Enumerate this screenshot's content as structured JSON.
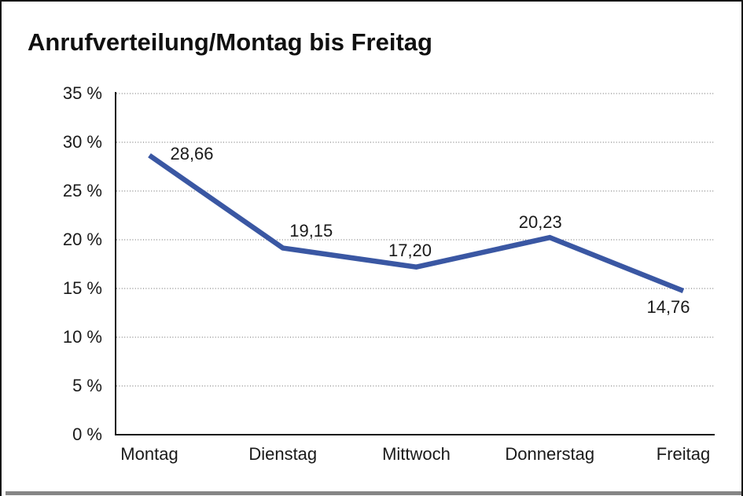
{
  "chart_data": {
    "type": "line",
    "title": "Anrufverteilung/Montag bis Freitag",
    "categories": [
      "Montag",
      "Dienstag",
      "Mittwoch",
      "Donnerstag",
      "Freitag"
    ],
    "values": [
      28.66,
      19.15,
      17.2,
      20.23,
      14.76
    ],
    "point_labels": [
      "28,66",
      "19,15",
      "17,20",
      "20,23",
      "14,76"
    ],
    "ylim": [
      0,
      35
    ],
    "ytick_step": 5,
    "ytick_labels": [
      "0 %",
      "5 %",
      "10 %",
      "15 %",
      "20 %",
      "25 %",
      "30 %",
      "35 %"
    ],
    "xlabel": "",
    "ylabel": "",
    "legend": "none",
    "grid": "horizontal-dotted",
    "line_color": "#3A57A3",
    "grid_color": "#676767",
    "axis_color": "#161616",
    "text_color": "#1a1a1a"
  }
}
